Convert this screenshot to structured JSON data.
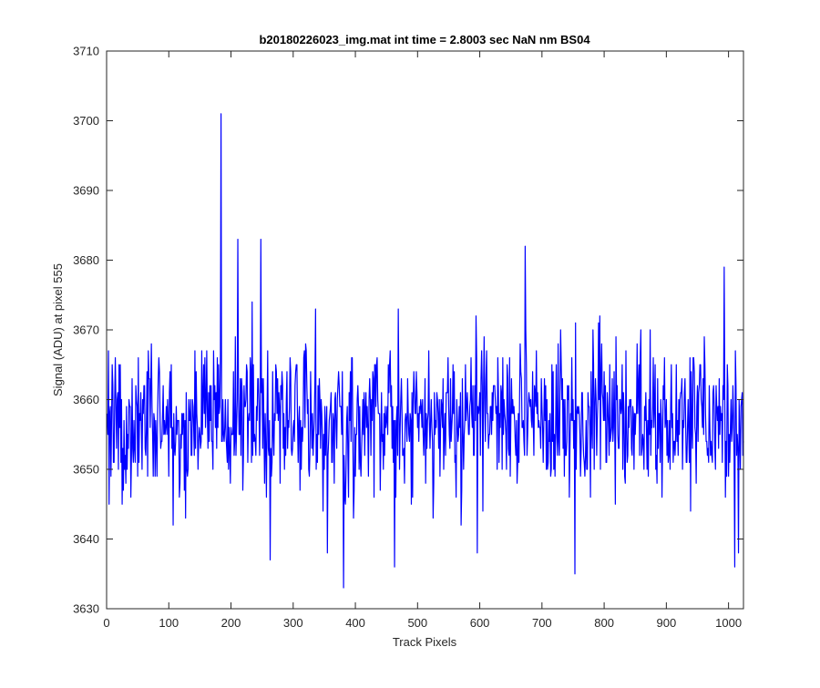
{
  "chart_data": {
    "type": "line",
    "title": "b20180226023_img.mat int time = 2.8003 sec  NaN nm BS04",
    "xlabel": "Track Pixels",
    "ylabel": "Signal (ADU) at pixel 555",
    "xlim": [
      0,
      1024
    ],
    "ylim": [
      3630,
      3710
    ],
    "x_ticks": [
      0,
      100,
      200,
      300,
      400,
      500,
      600,
      700,
      800,
      900,
      1000
    ],
    "y_ticks": [
      3630,
      3640,
      3650,
      3660,
      3670,
      3680,
      3690,
      3700,
      3710
    ],
    "grid": false,
    "series": [
      {
        "color": "#0000ff",
        "x_start": 1,
        "x_step": 1,
        "baseline": 3657,
        "noise_sigma": 5.5,
        "seed": 20180226,
        "notable_points": [
          {
            "x": 184,
            "y": 3701
          },
          {
            "x": 211,
            "y": 3683
          },
          {
            "x": 248,
            "y": 3683
          },
          {
            "x": 673,
            "y": 3682
          },
          {
            "x": 993,
            "y": 3679
          },
          {
            "x": 381,
            "y": 3633
          },
          {
            "x": 753,
            "y": 3635
          },
          {
            "x": 263,
            "y": 3637
          },
          {
            "x": 463,
            "y": 3636
          },
          {
            "x": 1010,
            "y": 3636
          },
          {
            "x": 355,
            "y": 3638
          },
          {
            "x": 596,
            "y": 3638
          },
          {
            "x": 1016,
            "y": 3638
          }
        ]
      }
    ]
  }
}
